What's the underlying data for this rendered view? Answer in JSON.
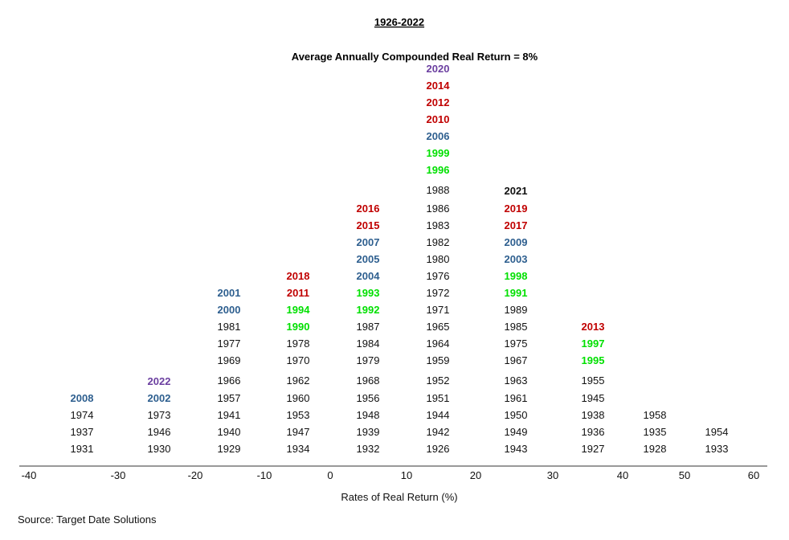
{
  "chart_data": {
    "type": "histogram",
    "title": "1926-2022",
    "subtitle": "Average Annually Compounded Real Return = 8%",
    "xlabel": "Rates of Real Return (%)",
    "xticks": [
      "-40",
      "-30",
      "-20",
      "-10",
      "0",
      "10",
      "20",
      "30",
      "40",
      "50",
      "60"
    ],
    "source": "Source: Target Date Solutions",
    "colors": {
      "black": "#111111",
      "red": "#c00000",
      "blue": "#2e5f8f",
      "green": "#00e000",
      "purple": "#6b3fa0"
    },
    "bins": [
      {
        "range": "-40 to -30",
        "years": [
          {
            "year": "1931",
            "color": "black"
          },
          {
            "year": "1937",
            "color": "black"
          },
          {
            "year": "1974",
            "color": "black"
          },
          {
            "year": "2008",
            "color": "blue"
          }
        ]
      },
      {
        "range": "-30 to -20",
        "years": [
          {
            "year": "1930",
            "color": "black"
          },
          {
            "year": "1946",
            "color": "black"
          },
          {
            "year": "1973",
            "color": "black"
          },
          {
            "year": "2002",
            "color": "blue"
          },
          {
            "year": "2022",
            "color": "purple",
            "large": true
          }
        ]
      },
      {
        "range": "-20 to -10",
        "years": [
          {
            "year": "1929",
            "color": "black"
          },
          {
            "year": "1940",
            "color": "black"
          },
          {
            "year": "1941",
            "color": "black"
          },
          {
            "year": "1957",
            "color": "black"
          },
          {
            "year": "1966",
            "color": "black"
          },
          {
            "year": "1969",
            "color": "black"
          },
          {
            "year": "1977",
            "color": "black"
          },
          {
            "year": "1981",
            "color": "black"
          },
          {
            "year": "2000",
            "color": "blue"
          },
          {
            "year": "2001",
            "color": "blue"
          }
        ]
      },
      {
        "range": "-10 to 0",
        "years": [
          {
            "year": "1934",
            "color": "black"
          },
          {
            "year": "1947",
            "color": "black"
          },
          {
            "year": "1953",
            "color": "black"
          },
          {
            "year": "1960",
            "color": "black"
          },
          {
            "year": "1962",
            "color": "black"
          },
          {
            "year": "1970",
            "color": "black"
          },
          {
            "year": "1978",
            "color": "black"
          },
          {
            "year": "1990",
            "color": "green"
          },
          {
            "year": "1994",
            "color": "green"
          },
          {
            "year": "2011",
            "color": "red"
          },
          {
            "year": "2018",
            "color": "red"
          }
        ]
      },
      {
        "range": "0 to 10",
        "years": [
          {
            "year": "1932",
            "color": "black"
          },
          {
            "year": "1939",
            "color": "black"
          },
          {
            "year": "1948",
            "color": "black"
          },
          {
            "year": "1956",
            "color": "black"
          },
          {
            "year": "1968",
            "color": "black"
          },
          {
            "year": "1979",
            "color": "black"
          },
          {
            "year": "1984",
            "color": "black"
          },
          {
            "year": "1987",
            "color": "black"
          },
          {
            "year": "1992",
            "color": "green"
          },
          {
            "year": "1993",
            "color": "green"
          },
          {
            "year": "2004",
            "color": "blue"
          },
          {
            "year": "2005",
            "color": "blue"
          },
          {
            "year": "2007",
            "color": "blue"
          },
          {
            "year": "2015",
            "color": "red"
          },
          {
            "year": "2016",
            "color": "red"
          }
        ]
      },
      {
        "range": "10 to 20",
        "years": [
          {
            "year": "1926",
            "color": "black"
          },
          {
            "year": "1942",
            "color": "black"
          },
          {
            "year": "1944",
            "color": "black"
          },
          {
            "year": "1951",
            "color": "black"
          },
          {
            "year": "1952",
            "color": "black"
          },
          {
            "year": "1959",
            "color": "black"
          },
          {
            "year": "1964",
            "color": "black"
          },
          {
            "year": "1965",
            "color": "black"
          },
          {
            "year": "1971",
            "color": "black"
          },
          {
            "year": "1972",
            "color": "black"
          },
          {
            "year": "1976",
            "color": "black"
          },
          {
            "year": "1980",
            "color": "black"
          },
          {
            "year": "1982",
            "color": "black"
          },
          {
            "year": "1983",
            "color": "black"
          },
          {
            "year": "1986",
            "color": "black"
          },
          {
            "year": "1988",
            "color": "black"
          },
          {
            "year": "1996",
            "color": "green"
          },
          {
            "year": "1999",
            "color": "green"
          },
          {
            "year": "2006",
            "color": "blue"
          },
          {
            "year": "2010",
            "color": "red"
          },
          {
            "year": "2012",
            "color": "red"
          },
          {
            "year": "2014",
            "color": "red"
          },
          {
            "year": "2020",
            "color": "purple"
          }
        ]
      },
      {
        "range": "20 to 30",
        "years": [
          {
            "year": "1943",
            "color": "black"
          },
          {
            "year": "1949",
            "color": "black"
          },
          {
            "year": "1950",
            "color": "black"
          },
          {
            "year": "1961",
            "color": "black"
          },
          {
            "year": "1963",
            "color": "black"
          },
          {
            "year": "1967",
            "color": "black"
          },
          {
            "year": "1975",
            "color": "black"
          },
          {
            "year": "1985",
            "color": "black"
          },
          {
            "year": "1989",
            "color": "black"
          },
          {
            "year": "1991",
            "color": "green"
          },
          {
            "year": "1998",
            "color": "green"
          },
          {
            "year": "2003",
            "color": "blue"
          },
          {
            "year": "2009",
            "color": "blue"
          },
          {
            "year": "2017",
            "color": "red"
          },
          {
            "year": "2019",
            "color": "red"
          },
          {
            "year": "2021",
            "color": "black",
            "large": true
          }
        ]
      },
      {
        "range": "30 to 40",
        "years": [
          {
            "year": "1927",
            "color": "black"
          },
          {
            "year": "1936",
            "color": "black"
          },
          {
            "year": "1938",
            "color": "black"
          },
          {
            "year": "1945",
            "color": "black"
          },
          {
            "year": "1955",
            "color": "black"
          },
          {
            "year": "1995",
            "color": "green"
          },
          {
            "year": "1997",
            "color": "green"
          },
          {
            "year": "2013",
            "color": "red"
          }
        ]
      },
      {
        "range": "40 to 50",
        "years": [
          {
            "year": "1928",
            "color": "black"
          },
          {
            "year": "1935",
            "color": "black"
          },
          {
            "year": "1958",
            "color": "black"
          }
        ]
      },
      {
        "range": "50 to 60",
        "years": [
          {
            "year": "1933",
            "color": "black"
          },
          {
            "year": "1954",
            "color": "black"
          }
        ]
      }
    ]
  }
}
